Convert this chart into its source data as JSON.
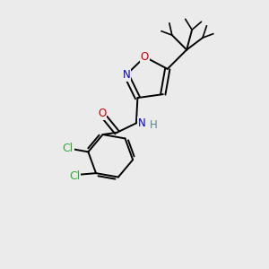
{
  "background_color": "#ebebeb",
  "fig_size": [
    3.0,
    3.0
  ],
  "dpi": 100,
  "atom_colors": {
    "C": "#000000",
    "N": "#0000cc",
    "O": "#cc0000",
    "Cl": "#33aa33",
    "H": "#558888"
  },
  "bond_color": "#000000",
  "bond_width": 1.4,
  "font_size_atoms": 8.5,
  "xlim": [
    0,
    10
  ],
  "ylim": [
    0,
    10
  ]
}
